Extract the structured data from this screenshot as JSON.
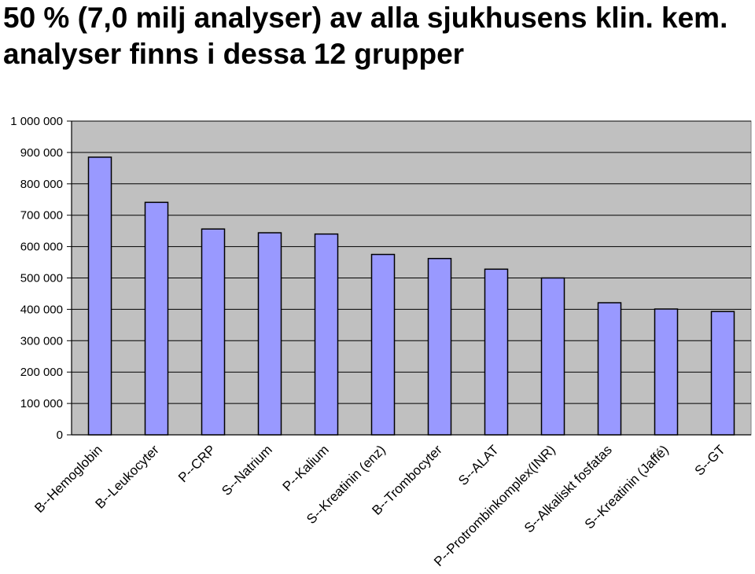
{
  "chart_data": {
    "type": "bar",
    "title": "50 % (7,0 milj analyser) av  alla sjukhusens klin. kem. analyser finns i dessa 12 grupper",
    "xlabel": "",
    "ylabel": "",
    "ylim": [
      0,
      1000000
    ],
    "yticks": [
      0,
      100000,
      200000,
      300000,
      400000,
      500000,
      600000,
      700000,
      800000,
      900000,
      1000000
    ],
    "ytick_labels": [
      "0",
      "100 000",
      "200 000",
      "300 000",
      "400 000",
      "500 000",
      "600 000",
      "700 000",
      "800 000",
      "900 000",
      "1 000 000"
    ],
    "categories": [
      "B--Hemoglobin",
      "B--Leukocyter",
      "P--CRP",
      "S--Natrium",
      "P--Kalium",
      "S--Kreatinin (enz)",
      "B--Trombocyter",
      "S--ALAT",
      "P--Protrombinkomplex(INR)",
      "S--Alkaliskt fosfatas",
      "S--Kreatinin (Jaffé)",
      "S--GT"
    ],
    "values": [
      885000,
      741000,
      656000,
      644000,
      640000,
      575000,
      562000,
      528000,
      500000,
      421000,
      401000,
      393000
    ],
    "grid": true,
    "legend": "none",
    "colors": {
      "bar": "#9999ff",
      "plot_bg": "#c0c0c0",
      "grid": "#000000"
    }
  }
}
